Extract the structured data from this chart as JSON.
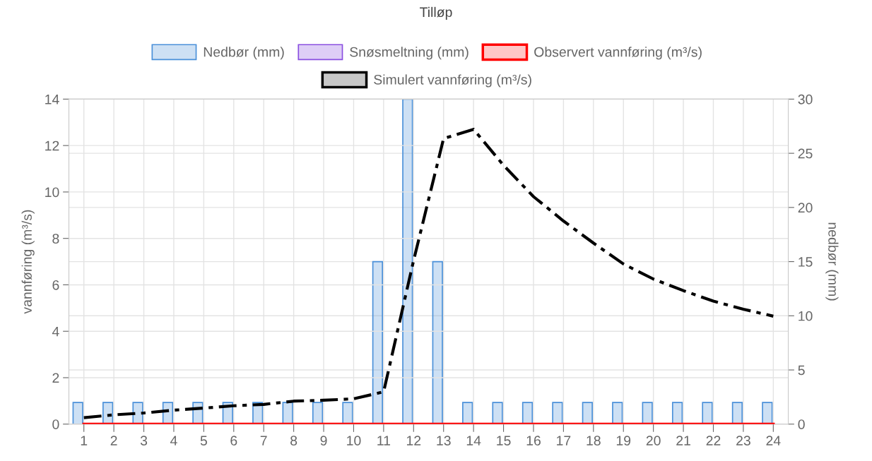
{
  "chart_data": {
    "type": "bar",
    "title": "Tilløp",
    "ylabel": "vannføring (m³/s)",
    "y2label": "nedbør (mm)",
    "categories": [
      "1",
      "2",
      "3",
      "4",
      "5",
      "6",
      "7",
      "8",
      "9",
      "10",
      "11",
      "12",
      "13",
      "14",
      "15",
      "16",
      "17",
      "18",
      "19",
      "20",
      "21",
      "22",
      "23",
      "24"
    ],
    "series": [
      {
        "name": "Nedbør (mm)",
        "axis": "y2",
        "color": "#4a90d9",
        "values": [
          2,
          2,
          2,
          2,
          2,
          2,
          2,
          2,
          2,
          2,
          15,
          30,
          15,
          2,
          2,
          2,
          2,
          2,
          2,
          2,
          2,
          2,
          2,
          2
        ]
      },
      {
        "name": "Snøsmeltning (mm)",
        "axis": "y2",
        "color": "#8a4fe0",
        "values": [
          0,
          0,
          0,
          0,
          0,
          0,
          0,
          0,
          0,
          0,
          0,
          0,
          0,
          0,
          0,
          0,
          0,
          0,
          0,
          0,
          0,
          0,
          0,
          0
        ]
      },
      {
        "name": "Observert vannføring (m³/s)",
        "type": "line",
        "color": "#ff0000",
        "line_style": "solid",
        "values": [
          0,
          0,
          0,
          0,
          0,
          0,
          0,
          0,
          0,
          0,
          0,
          0,
          0,
          0,
          0,
          0,
          0,
          0,
          0,
          0,
          0,
          0,
          0,
          0
        ]
      },
      {
        "name": "Simulert vannføring (m³/s)",
        "type": "line",
        "color": "#000000",
        "line_style": "dashdot",
        "values": [
          0.28,
          0.4,
          0.48,
          0.6,
          0.69,
          0.79,
          0.85,
          0.99,
          1.03,
          1.09,
          1.39,
          7.05,
          12.3,
          12.7,
          11.15,
          9.8,
          8.75,
          7.8,
          6.9,
          6.25,
          5.75,
          5.3,
          4.95,
          4.65
        ]
      }
    ],
    "ylim": [
      0,
      14
    ],
    "yticks": [
      0,
      2,
      4,
      6,
      8,
      10,
      12,
      14
    ],
    "y2lim": [
      0,
      30
    ],
    "y2ticks": [
      0,
      5,
      10,
      15,
      20,
      25,
      30
    ],
    "grid": true,
    "legend": "top",
    "marker": "none"
  }
}
